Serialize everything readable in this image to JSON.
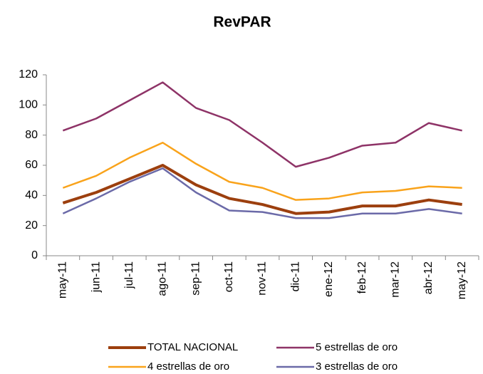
{
  "chart_data": {
    "type": "line",
    "title": "RevPAR",
    "categories": [
      "may-11",
      "jun-11",
      "jul-11",
      "ago-11",
      "sep-11",
      "oct-11",
      "nov-11",
      "dic-11",
      "ene-12",
      "feb-12",
      "mar-12",
      "abr-12",
      "may-12"
    ],
    "series": [
      {
        "name": "TOTAL NACIONAL",
        "color": "#9c3f0e",
        "values": [
          35,
          42,
          51,
          60,
          47,
          38,
          34,
          28,
          29,
          33,
          33,
          37,
          34
        ]
      },
      {
        "name": "5 estrellas de oro",
        "color": "#8e3367",
        "values": [
          83,
          91,
          103,
          115,
          98,
          90,
          75,
          59,
          65,
          73,
          75,
          88,
          83
        ]
      },
      {
        "name": "4 estrellas de oro",
        "color": "#f9a31b",
        "values": [
          45,
          53,
          65,
          75,
          61,
          49,
          45,
          37,
          38,
          42,
          43,
          46,
          45
        ]
      },
      {
        "name": "3 estrellas de oro",
        "color": "#6b6aa8",
        "values": [
          28,
          38,
          49,
          58,
          42,
          30,
          29,
          25,
          25,
          28,
          28,
          31,
          28
        ]
      }
    ],
    "ylim": [
      0,
      120
    ],
    "yticks": [
      0,
      20,
      40,
      60,
      80,
      100,
      120
    ],
    "grid": false,
    "legend": "bottom"
  }
}
